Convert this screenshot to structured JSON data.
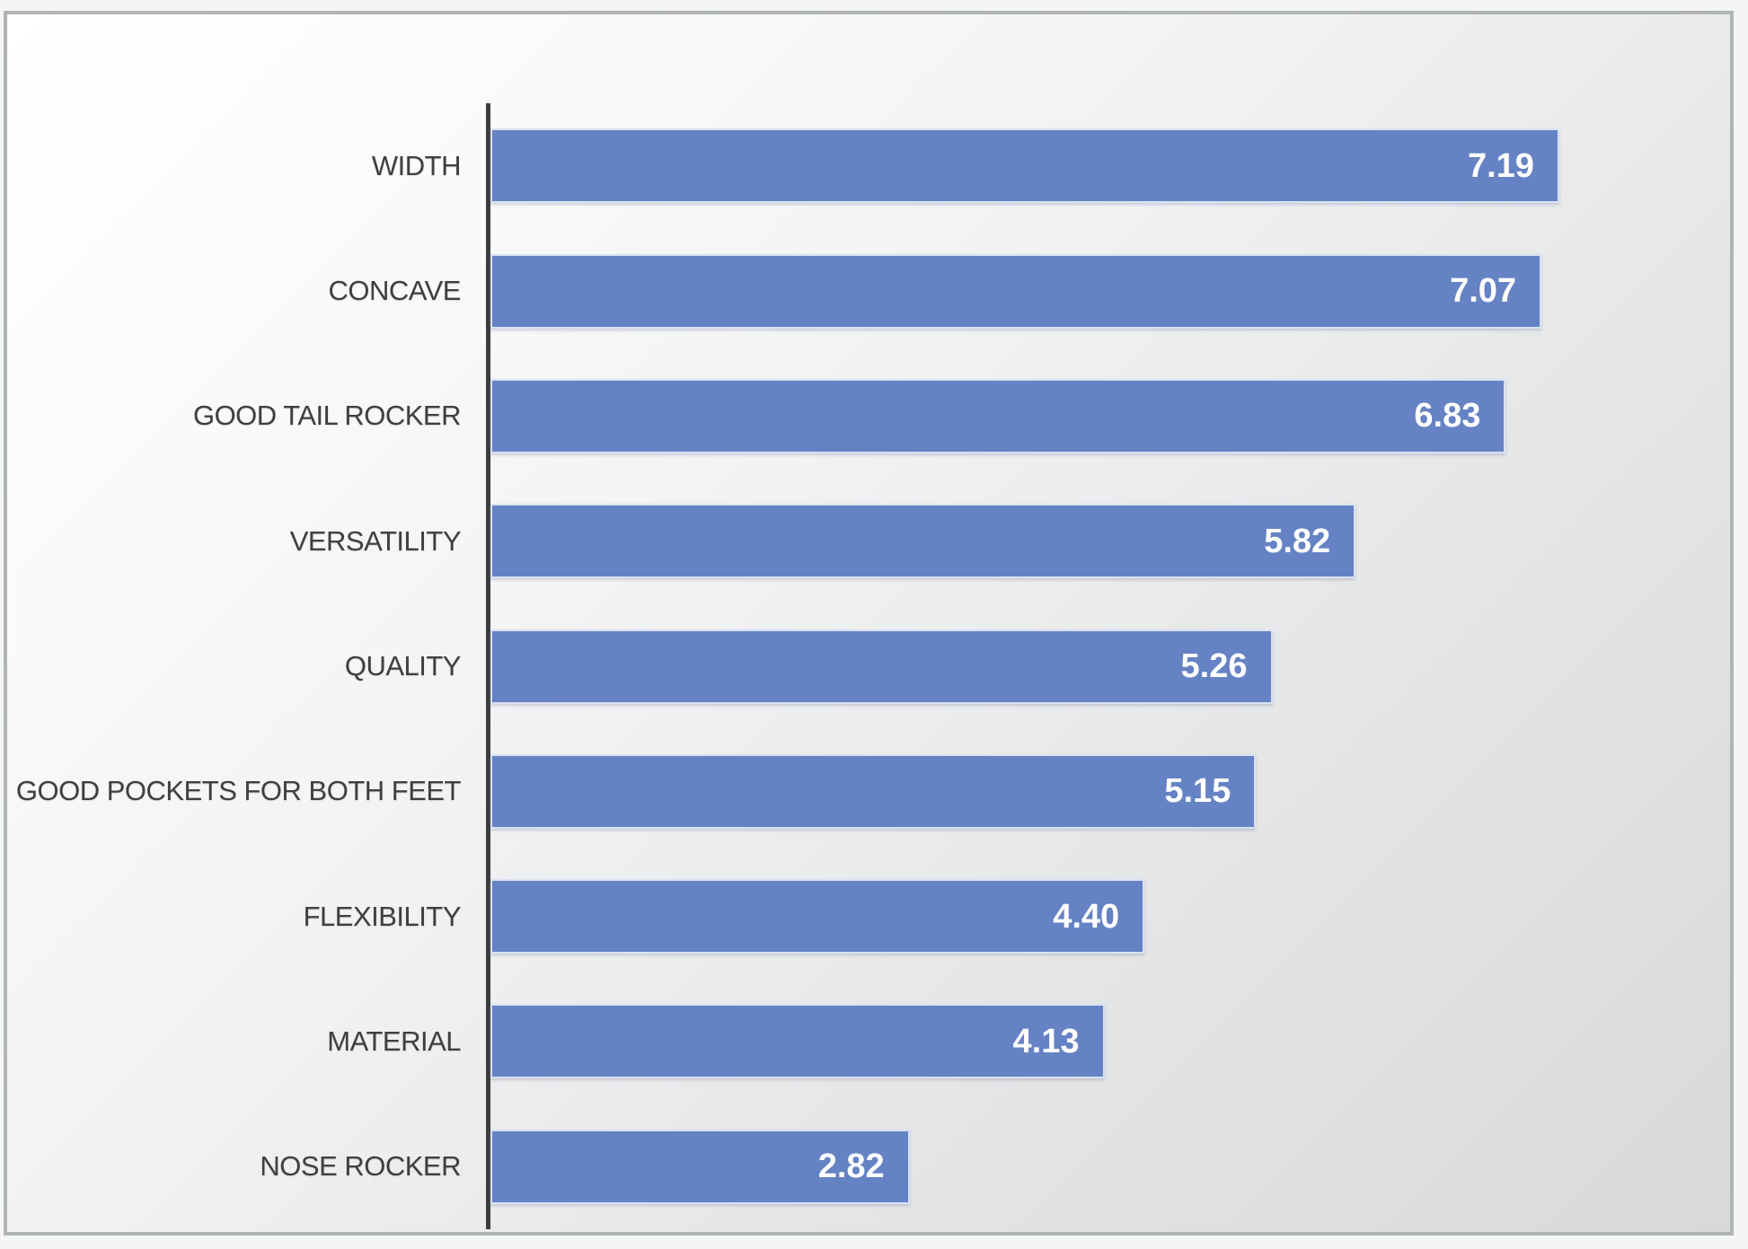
{
  "chart_data": {
    "type": "bar",
    "orientation": "horizontal",
    "title": "",
    "xlabel": "",
    "ylabel": "",
    "categories": [
      "WIDTH",
      "CONCAVE",
      "GOOD TAIL ROCKER",
      "VERSATILITY",
      "QUALITY",
      "GOOD POCKETS FOR BOTH FEET",
      "FLEXIBILITY",
      "MATERIAL",
      "NOSE ROCKER"
    ],
    "values": [
      7.19,
      7.07,
      6.83,
      5.82,
      5.26,
      5.15,
      4.4,
      4.13,
      2.82
    ],
    "value_labels": [
      "7.19",
      "7.07",
      "6.83",
      "5.82",
      "5.26",
      "5.15",
      "4.40",
      "4.13",
      "2.82"
    ],
    "xlim": [
      0,
      8
    ],
    "grid": false,
    "legend": null,
    "data_labels_position": "inside-end",
    "colors": {
      "bar_fill": "#6583c4",
      "bar_border": "#d9e2f4",
      "value_label": "#ffffff",
      "category_label": "#3f3f3f",
      "axis_line": "#3b3d3f",
      "frame_border": "#b1b4b6",
      "background_gradient_start": "#ffffff",
      "background_gradient_end": "#d7d9da"
    }
  }
}
